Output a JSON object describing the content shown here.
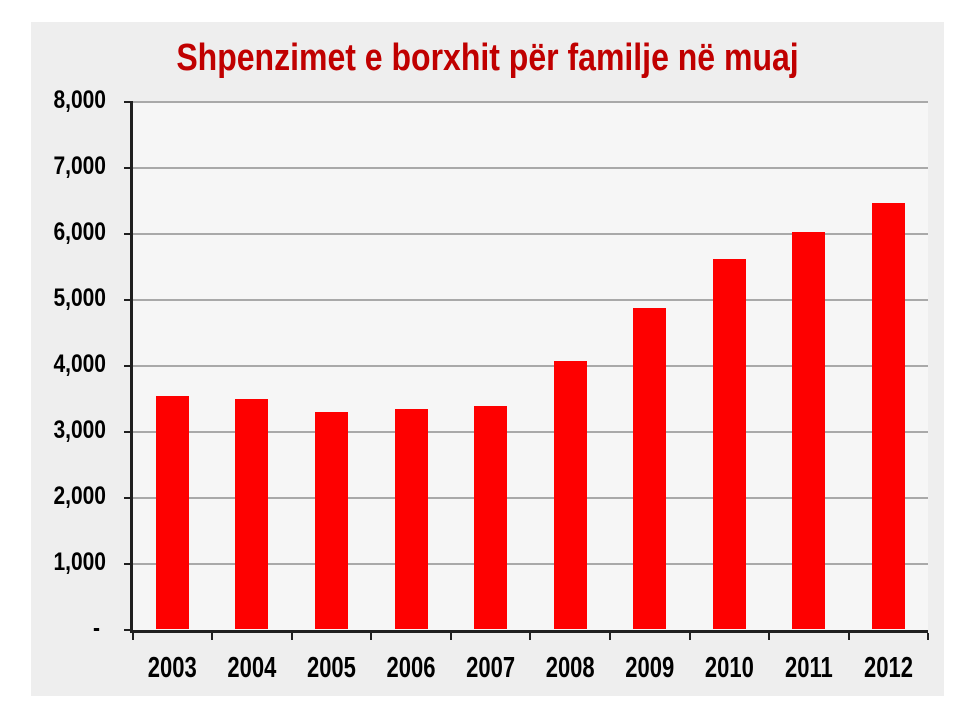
{
  "chart_data": {
    "type": "bar",
    "title": "Shpenzimet e borxhit për familje në muaj",
    "title_color": "#c00000",
    "bar_color": "#fe0000",
    "background": "#eeeeee",
    "plot_background": "#f6f6f6",
    "gridline_color": "#a9a9a9",
    "categories": [
      "2003",
      "2004",
      "2005",
      "2006",
      "2007",
      "2008",
      "2009",
      "2010",
      "2011",
      "2012"
    ],
    "values": [
      3540,
      3490,
      3290,
      3340,
      3390,
      4070,
      4870,
      5610,
      6030,
      6460
    ],
    "ylim": [
      0,
      8000
    ],
    "ytick_step": 1000,
    "ytick_labels": [
      "-",
      "1,000",
      "2,000",
      "3,000",
      "4,000",
      "5,000",
      "6,000",
      "7,000",
      "8,000"
    ],
    "xlabel": "",
    "ylabel": "",
    "grid": true,
    "legend": false
  }
}
